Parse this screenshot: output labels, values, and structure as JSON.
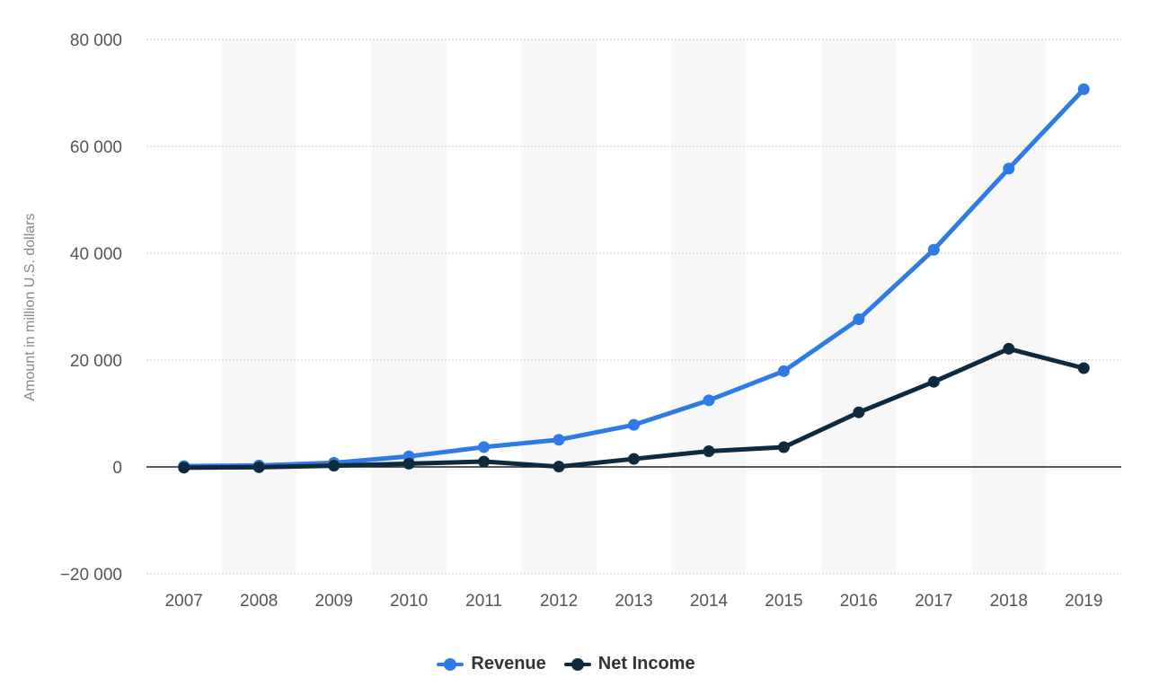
{
  "chart_data": {
    "type": "line",
    "title": "",
    "xlabel": "",
    "ylabel": "Amount in million U.S. dollars",
    "categories": [
      "2007",
      "2008",
      "2009",
      "2010",
      "2011",
      "2012",
      "2013",
      "2014",
      "2015",
      "2016",
      "2017",
      "2018",
      "2019"
    ],
    "ylim": [
      -20000,
      80000
    ],
    "yticks": [
      -20000,
      0,
      20000,
      40000,
      60000,
      80000
    ],
    "ytick_labels": [
      "−20 000",
      "0",
      "20 000",
      "40 000",
      "60 000",
      "80 000"
    ],
    "grid": true,
    "legend_position": "bottom-center",
    "series": [
      {
        "name": "Revenue",
        "color": "#2f7ae5",
        "values": [
          153,
          272,
          777,
          1974,
          3711,
          5089,
          7872,
          12466,
          17928,
          27638,
          40653,
          55838,
          70697
        ]
      },
      {
        "name": "Net Income",
        "color": "#0e2a3e",
        "values": [
          -138,
          -56,
          229,
          606,
          1000,
          53,
          1500,
          2940,
          3688,
          10217,
          15934,
          22112,
          18485
        ]
      }
    ]
  },
  "colors": {
    "band": "#f7f7f7",
    "grid": "#cccccc",
    "zero_line": "#222222",
    "tick_text": "#555555",
    "axis_title": "#888888"
  }
}
